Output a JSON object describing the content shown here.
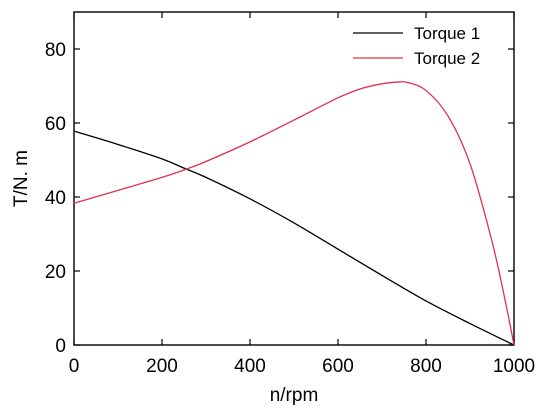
{
  "chart_data": {
    "type": "line",
    "xlabel": "n/rpm",
    "ylabel": "T/N. m",
    "xlim": [
      0,
      1000
    ],
    "ylim": [
      0,
      90
    ],
    "xticks": [
      0,
      200,
      400,
      600,
      800,
      1000
    ],
    "yticks": [
      0,
      20,
      40,
      60,
      80
    ],
    "grid": false,
    "legend_position": "top-right",
    "series": [
      {
        "name": "Torque 1",
        "color": "#000000",
        "x": [
          0,
          100,
          200,
          250,
          300,
          400,
          500,
          600,
          700,
          800,
          900,
          1000
        ],
        "y": [
          57.8,
          54.2,
          50.3,
          47.8,
          45.3,
          39.5,
          33.0,
          25.9,
          18.8,
          11.9,
          5.8,
          0
        ]
      },
      {
        "name": "Torque 2",
        "color": "#e0304a",
        "x": [
          0,
          100,
          200,
          250,
          300,
          400,
          500,
          600,
          650,
          700,
          740,
          760,
          800,
          850,
          900,
          950,
          980,
          1000
        ],
        "y": [
          38.3,
          41.8,
          45.3,
          47.3,
          49.6,
          54.9,
          60.8,
          66.8,
          69.2,
          70.6,
          71.1,
          70.9,
          68.8,
          61.9,
          49.0,
          28.0,
          12.0,
          0
        ]
      }
    ]
  }
}
